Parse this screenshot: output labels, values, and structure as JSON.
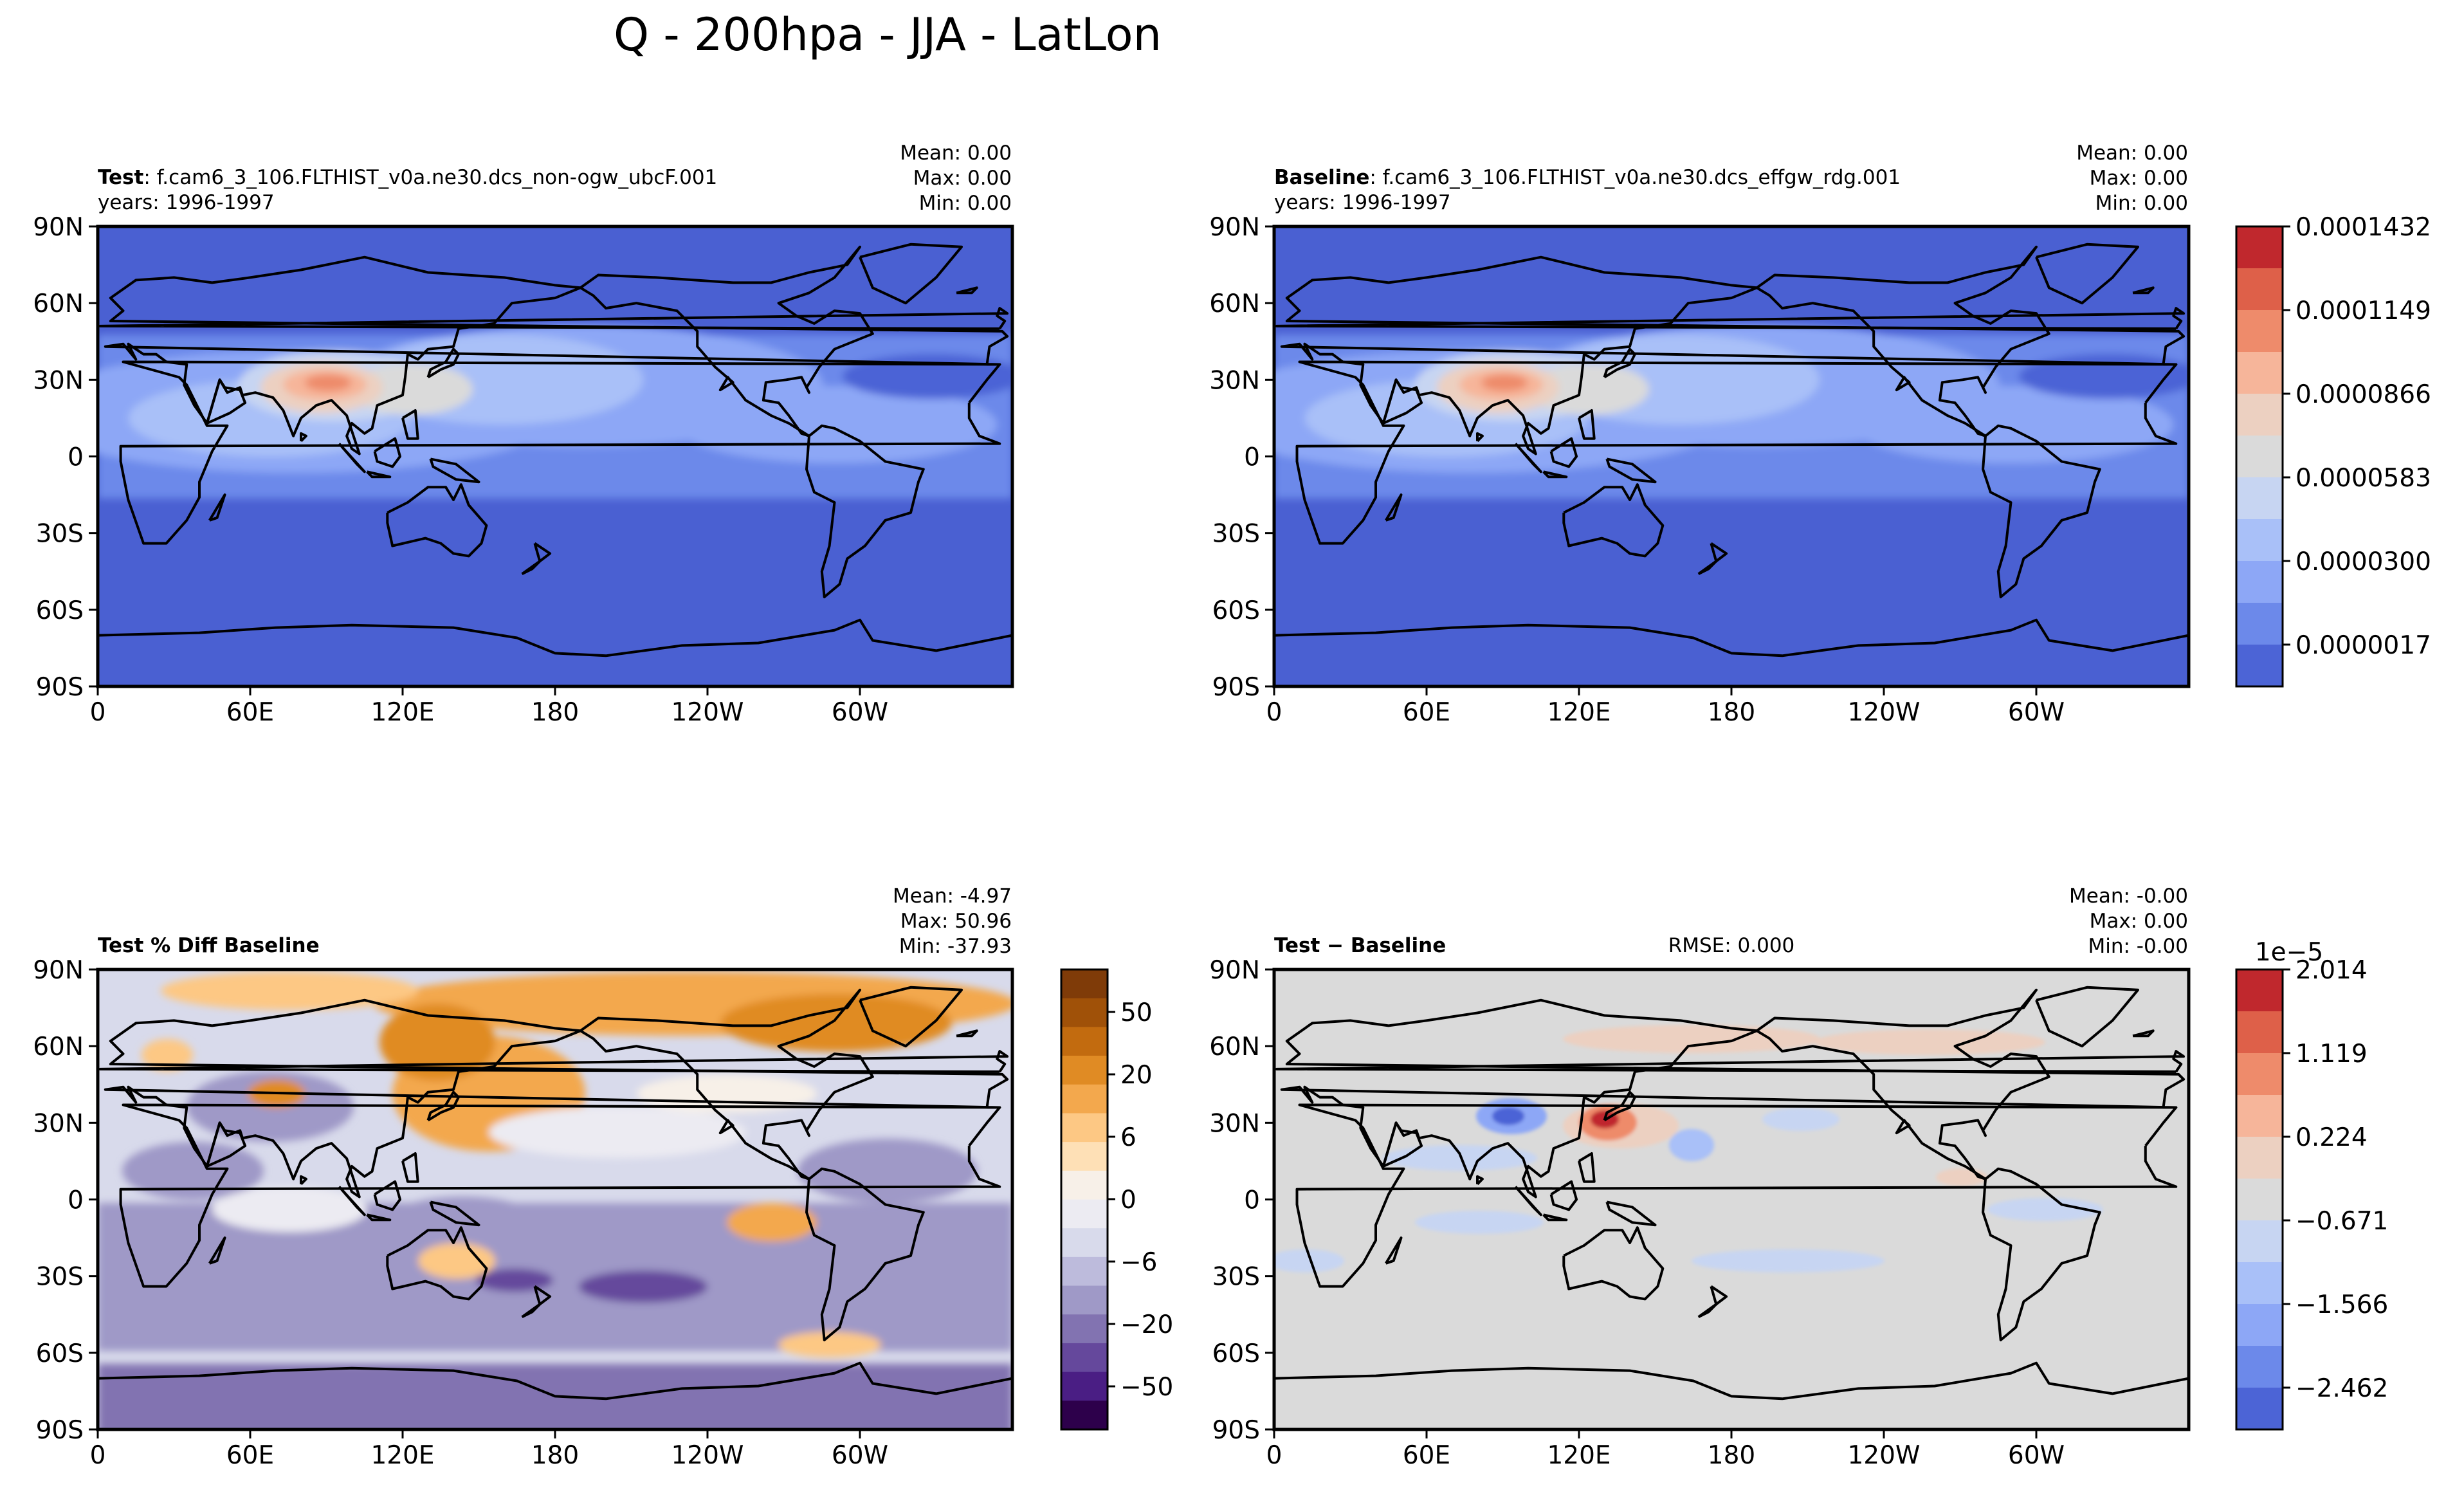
{
  "figure": {
    "title": "Q - 200hpa - JJA - LatLon"
  },
  "chart_data": [
    {
      "type": "heatmap",
      "panel": "test",
      "title_bold": "Test",
      "title_rest": ": f.cam6_3_106.FLTHIST_v0a.ne30.dcs_non-ogw_ubcF.001",
      "subtitle": "years: 1996-1997",
      "stats": [
        "Mean:  0.00",
        "Max:  0.00",
        "Min:  0.00"
      ],
      "x_ticks": [
        "0",
        "60E",
        "120E",
        "180",
        "120W",
        "60W"
      ],
      "y_ticks": [
        "90N",
        "60N",
        "30N",
        "0",
        "30S",
        "60S",
        "90S"
      ],
      "xlim": [
        0,
        360
      ],
      "ylim": [
        -90,
        90
      ],
      "field": "specific humidity at 200 hPa, JJA mean"
    },
    {
      "type": "heatmap",
      "panel": "baseline",
      "title_bold": "Baseline",
      "title_rest": ": f.cam6_3_106.FLTHIST_v0a.ne30.dcs_effgw_rdg.001",
      "subtitle": "years: 1996-1997",
      "stats": [
        "Mean:  0.00",
        "Max:  0.00",
        "Min:  0.00"
      ],
      "x_ticks": [
        "0",
        "60E",
        "120E",
        "180",
        "120W",
        "60W"
      ],
      "y_ticks": [
        "90N",
        "60N",
        "30N",
        "0",
        "30S",
        "60S",
        "90S"
      ],
      "xlim": [
        0,
        360
      ],
      "ylim": [
        -90,
        90
      ],
      "colorbar": {
        "labels": [
          "0.0001432",
          "0.0001149",
          "0.0000866",
          "0.0000583",
          "0.0000300",
          "0.0000017"
        ],
        "colors": [
          "#c0282d",
          "#de6049",
          "#ee8b6b",
          "#f6b59a",
          "#ecd0c1",
          "#dadada",
          "#c7d5f2",
          "#a9c0f8",
          "#8da7f6",
          "#6c89ea",
          "#4c64d6"
        ]
      }
    },
    {
      "type": "heatmap",
      "panel": "pct_diff",
      "title_bold": "Test % Diff Baseline",
      "stats": [
        "Mean: -4.97",
        "Max: 50.96",
        "Min: -37.93"
      ],
      "x_ticks": [
        "0",
        "60E",
        "120E",
        "180",
        "120W",
        "60W"
      ],
      "y_ticks": [
        "90N",
        "60N",
        "30N",
        "0",
        "30S",
        "60S",
        "90S"
      ],
      "xlim": [
        0,
        360
      ],
      "ylim": [
        -90,
        90
      ],
      "colorbar": {
        "labels": [
          "50",
          "20",
          "6",
          "0",
          "−6",
          "−20",
          "−50"
        ],
        "colors": [
          "#7f3b08",
          "#a05108",
          "#c26b0f",
          "#e08b24",
          "#f3a84d",
          "#fdc884",
          "#fee0b6",
          "#f7f0e8",
          "#ecebf2",
          "#d8daeb",
          "#bdbbdc",
          "#9f99c7",
          "#8273b1",
          "#65489c",
          "#4a1e84",
          "#2d004b"
        ]
      }
    },
    {
      "type": "heatmap",
      "panel": "difference",
      "title_bold": "Test − Baseline",
      "rmse": "RMSE: 0.000",
      "stats": [
        "Mean: -0.00",
        "Max:  0.00",
        "Min: -0.00"
      ],
      "x_ticks": [
        "0",
        "60E",
        "120E",
        "180",
        "120W",
        "60W"
      ],
      "y_ticks": [
        "90N",
        "60N",
        "30N",
        "0",
        "30S",
        "60S",
        "90S"
      ],
      "xlim": [
        0,
        360
      ],
      "ylim": [
        -90,
        90
      ],
      "colorbar": {
        "offset_label": "1e−5",
        "labels": [
          "2.014",
          "1.119",
          "0.224",
          "−0.671",
          "−1.566",
          "−2.462"
        ],
        "colors": [
          "#c0282d",
          "#de6049",
          "#ee8b6b",
          "#f6b59a",
          "#ecd0c1",
          "#dadada",
          "#c7d5f2",
          "#a9c0f8",
          "#8da7f6",
          "#6c89ea",
          "#4c64d6"
        ]
      }
    }
  ]
}
